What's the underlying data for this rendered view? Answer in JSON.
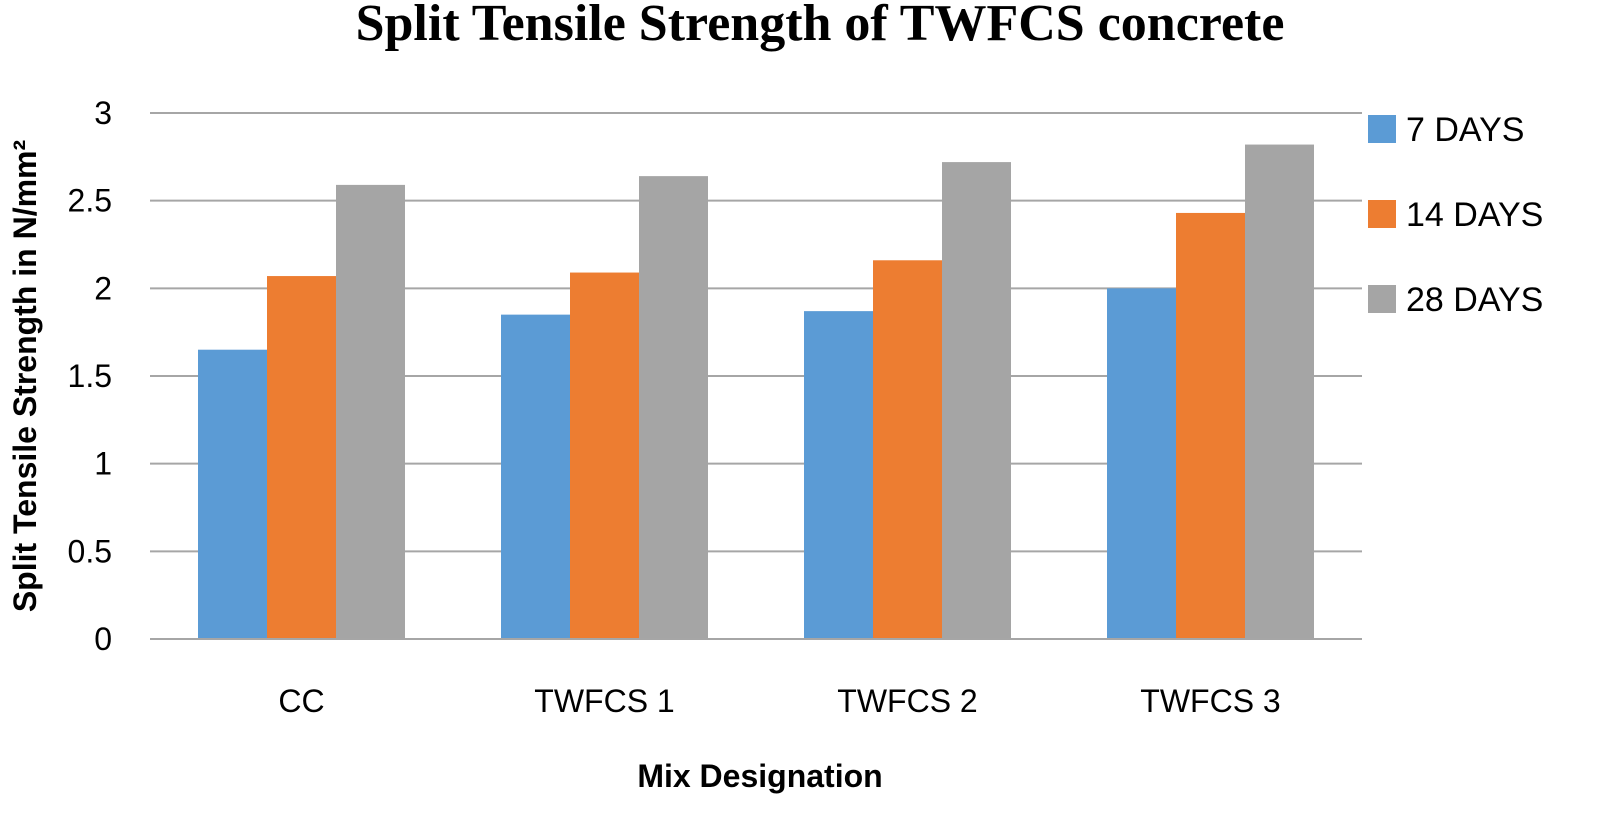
{
  "chart_data": {
    "type": "bar",
    "title": "Split Tensile Strength of TWFCS concrete",
    "xlabel": "Mix Designation",
    "ylabel": "Split Tensile Strength in N/mm²",
    "categories": [
      "CC",
      "TWFCS 1",
      "TWFCS 2",
      "TWFCS 3"
    ],
    "series": [
      {
        "name": "7 DAYS",
        "color": "#5b9bd5",
        "values": [
          1.65,
          1.85,
          1.87,
          2.0
        ]
      },
      {
        "name": "14 DAYS",
        "color": "#ed7d31",
        "values": [
          2.07,
          2.09,
          2.16,
          2.43
        ]
      },
      {
        "name": "28 DAYS",
        "color": "#a5a5a5",
        "values": [
          2.59,
          2.64,
          2.72,
          2.82
        ]
      }
    ],
    "ylim": [
      0,
      3
    ],
    "yticks": [
      "0",
      "0.5",
      "1",
      "1.5",
      "2",
      "2.5",
      "3"
    ],
    "grid": true,
    "legend_position": "right"
  }
}
